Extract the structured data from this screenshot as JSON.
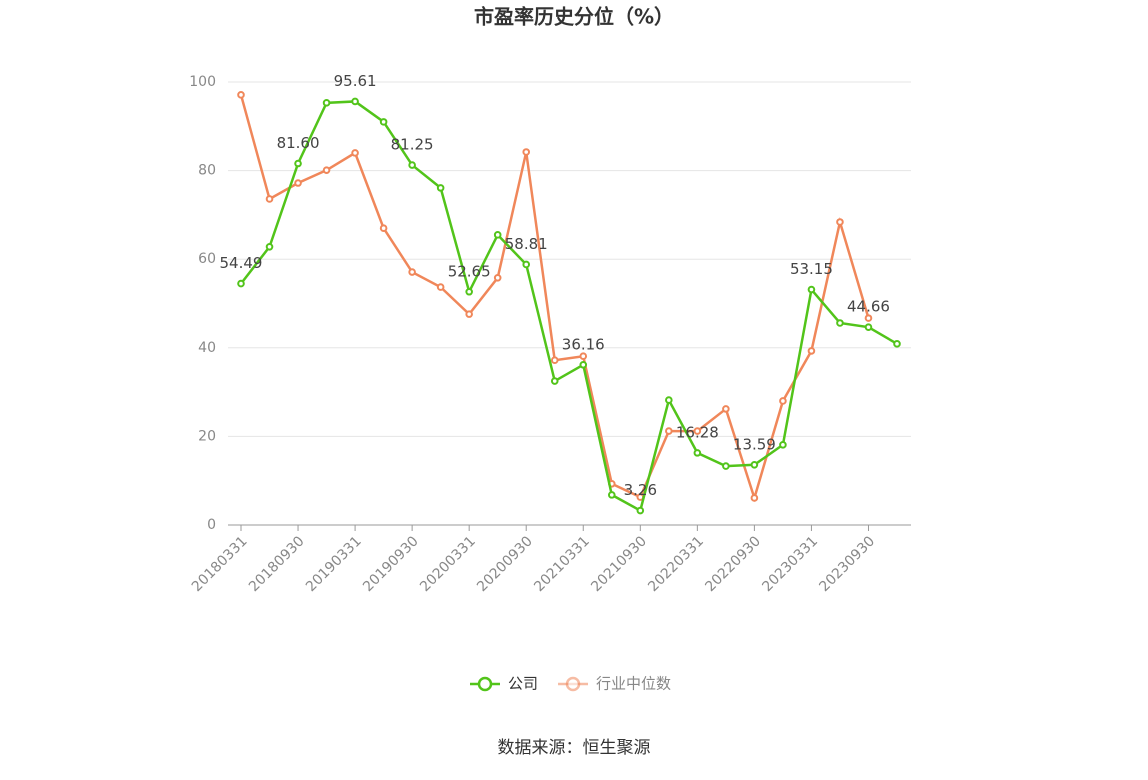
{
  "chart_data": {
    "type": "line",
    "title": "市盈率历史分位（%）",
    "categories": [
      "20180331",
      null,
      "20180930",
      null,
      "20190331",
      null,
      "20190930",
      null,
      "20200331",
      null,
      "20200930",
      null,
      "20210331",
      null,
      "20210930",
      null,
      "20220331",
      null,
      "20220930",
      null,
      "20230331",
      null,
      "20230930",
      null
    ],
    "series": [
      {
        "name": "公司",
        "color": "#52c41a",
        "values": [
          54.49,
          62.8,
          81.6,
          95.3,
          95.61,
          91.0,
          81.25,
          76.1,
          52.65,
          65.5,
          58.81,
          32.5,
          36.16,
          6.8,
          3.26,
          28.2,
          16.28,
          13.3,
          13.59,
          18.1,
          53.15,
          45.6,
          44.66,
          40.9
        ],
        "value_labels": [
          "54.49",
          null,
          "81.60",
          null,
          "95.61",
          null,
          "81.25",
          null,
          "52.65",
          null,
          "58.81",
          null,
          "36.16",
          null,
          "3.26",
          null,
          "16.28",
          null,
          "13.59",
          null,
          "53.15",
          null,
          "44.66",
          null
        ]
      },
      {
        "name": "行业中位数",
        "color": "#f0875a",
        "values": [
          97.1,
          73.6,
          77.2,
          80.1,
          84.0,
          67.0,
          57.1,
          53.7,
          47.6,
          55.8,
          84.2,
          37.2,
          38.1,
          9.3,
          6.3,
          21.2,
          21.2,
          26.2,
          6.1,
          28.0,
          39.3,
          68.4,
          46.7,
          null
        ]
      }
    ],
    "ylim": [
      0,
      100
    ],
    "yticks": [
      0,
      20,
      40,
      60,
      80,
      100
    ],
    "grid": true,
    "source": "数据来源：恒生聚源"
  }
}
